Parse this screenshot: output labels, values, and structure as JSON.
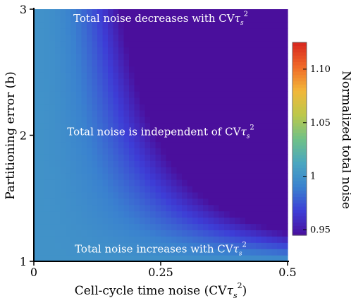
{
  "chart_data": {
    "type": "heatmap",
    "title": "",
    "xlabel": "Cell-cycle time noise (CV",
    "xlabel_sym": "τ",
    "xlabel_sub": "s",
    "xlabel_sup": "2",
    "xlabel_close": ")",
    "ylabel": "Partitioning error (b)",
    "xlim": [
      0,
      0.5
    ],
    "ylim": [
      1,
      3
    ],
    "x_ticks": [
      {
        "value": 0,
        "label": "0"
      },
      {
        "value": 0.25,
        "label": "0.25"
      },
      {
        "value": 0.5,
        "label": "0.5"
      }
    ],
    "y_ticks": [
      {
        "value": 1,
        "label": "1"
      },
      {
        "value": 2,
        "label": "2"
      },
      {
        "value": 3,
        "label": "3"
      }
    ],
    "colorbar": {
      "label": "Normalized total noise",
      "range": [
        0.945,
        1.125
      ],
      "ticks": [
        {
          "value": 0.95,
          "label": "0.95"
        },
        {
          "value": 1.0,
          "label": "1"
        },
        {
          "value": 1.05,
          "label": "1.05"
        },
        {
          "value": 1.1,
          "label": "1.10"
        }
      ],
      "colormap": [
        "#4a0f9c",
        "#3d3dd6",
        "#3a82cf",
        "#4aa6c0",
        "#6fc187",
        "#bcc84b",
        "#f2b73a",
        "#f06a28",
        "#d7261e"
      ]
    },
    "model": "noise = 1 + x^2 * (1 - b) * 0.95",
    "annotations": [
      {
        "text": "Total noise decreases with CV",
        "sym": "τ",
        "sub": "s",
        "sup": "2",
        "x": 0.25,
        "y": 2.9
      },
      {
        "text": "Total noise is independent of CV",
        "sym": "τ",
        "sub": "s",
        "sup": "2",
        "x": 0.25,
        "y": 2.0
      },
      {
        "text": "Total noise increases with CV",
        "sym": "τ",
        "sub": "s",
        "sup": "2",
        "x": 0.25,
        "y": 1.07
      }
    ]
  }
}
